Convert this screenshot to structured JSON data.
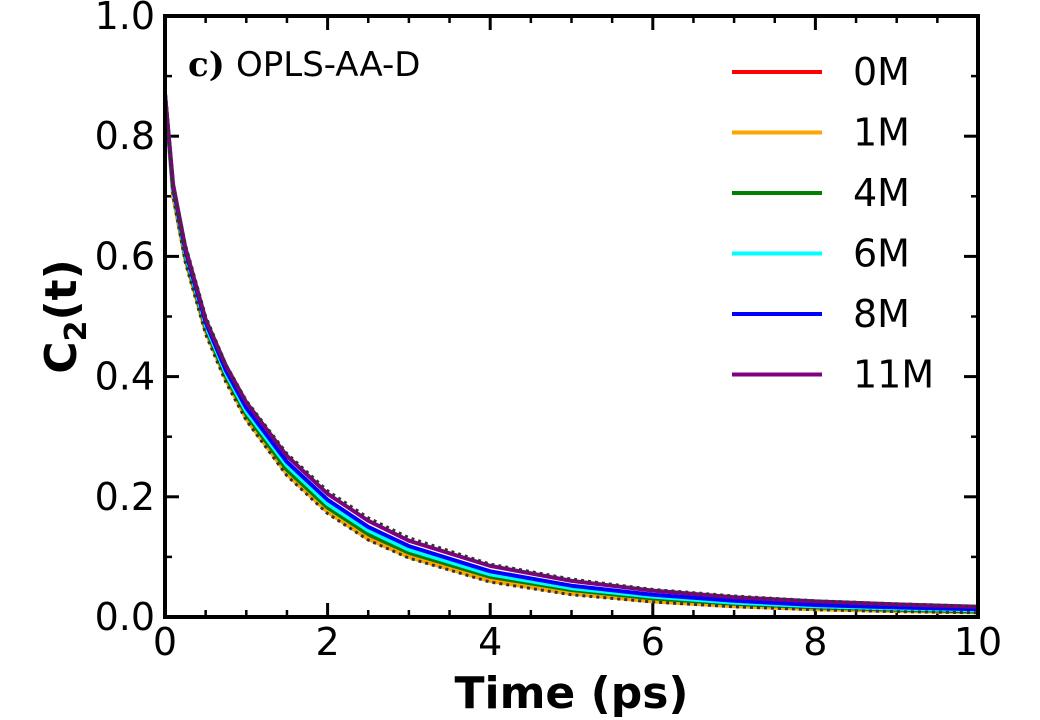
{
  "chart_data": {
    "type": "line",
    "panel_tag": "c)",
    "panel_name": "OPLS-AA-D",
    "xlabel": "Time (ps)",
    "ylabel_main": "C",
    "ylabel_sub": "2",
    "ylabel_tail": "(t)",
    "xlim": [
      0,
      10
    ],
    "ylim": [
      0,
      1.0
    ],
    "xticks": [
      0,
      2,
      4,
      6,
      8,
      10
    ],
    "xtick_labels": [
      "0",
      "2",
      "4",
      "6",
      "8",
      "10"
    ],
    "yticks": [
      0.0,
      0.2,
      0.4,
      0.6,
      0.8,
      1.0
    ],
    "ytick_labels": [
      "0.0",
      "0.2",
      "0.4",
      "0.6",
      "0.8",
      "1.0"
    ],
    "legend_position": "top-right",
    "x": [
      0,
      0.1,
      0.25,
      0.5,
      0.75,
      1,
      1.5,
      2,
      2.5,
      3,
      4,
      5,
      6,
      7,
      8,
      9,
      10
    ],
    "series": [
      {
        "name": "0M",
        "color": "#ff0000",
        "values": [
          0.87,
          0.71,
          0.6,
          0.48,
          0.4,
          0.335,
          0.245,
          0.18,
          0.135,
          0.105,
          0.065,
          0.043,
          0.03,
          0.021,
          0.016,
          0.012,
          0.009
        ]
      },
      {
        "name": "1M",
        "color": "#ffa500",
        "values": [
          0.87,
          0.7,
          0.595,
          0.475,
          0.395,
          0.33,
          0.238,
          0.175,
          0.13,
          0.1,
          0.06,
          0.039,
          0.026,
          0.018,
          0.013,
          0.01,
          0.008
        ]
      },
      {
        "name": "4M",
        "color": "#008000",
        "values": [
          0.87,
          0.71,
          0.6,
          0.48,
          0.4,
          0.337,
          0.245,
          0.182,
          0.138,
          0.107,
          0.067,
          0.045,
          0.031,
          0.022,
          0.016,
          0.012,
          0.009
        ]
      },
      {
        "name": "6M",
        "color": "#00ffff",
        "values": [
          0.87,
          0.71,
          0.605,
          0.485,
          0.405,
          0.342,
          0.252,
          0.188,
          0.144,
          0.112,
          0.071,
          0.048,
          0.034,
          0.024,
          0.018,
          0.014,
          0.011
        ]
      },
      {
        "name": "8M",
        "color": "#0000ff",
        "values": [
          0.87,
          0.715,
          0.61,
          0.49,
          0.41,
          0.348,
          0.258,
          0.195,
          0.15,
          0.118,
          0.076,
          0.052,
          0.037,
          0.027,
          0.02,
          0.016,
          0.013
        ]
      },
      {
        "name": "11M",
        "color": "#800080",
        "values": [
          0.87,
          0.72,
          0.615,
          0.495,
          0.418,
          0.357,
          0.268,
          0.205,
          0.16,
          0.127,
          0.085,
          0.06,
          0.044,
          0.033,
          0.026,
          0.021,
          0.017
        ]
      }
    ],
    "fit_curves": [
      {
        "values": [
          0.87,
          0.7,
          0.59,
          0.47,
          0.39,
          0.327,
          0.235,
          0.172,
          0.128,
          0.098,
          0.058,
          0.037,
          0.025,
          0.017,
          0.012,
          0.009,
          0.007
        ]
      },
      {
        "values": [
          0.87,
          0.72,
          0.62,
          0.5,
          0.42,
          0.36,
          0.272,
          0.21,
          0.165,
          0.132,
          0.088,
          0.063,
          0.046,
          0.035,
          0.027,
          0.022,
          0.018
        ]
      }
    ]
  },
  "colors": {
    "fit_line": "#333333",
    "axis": "#000000"
  }
}
